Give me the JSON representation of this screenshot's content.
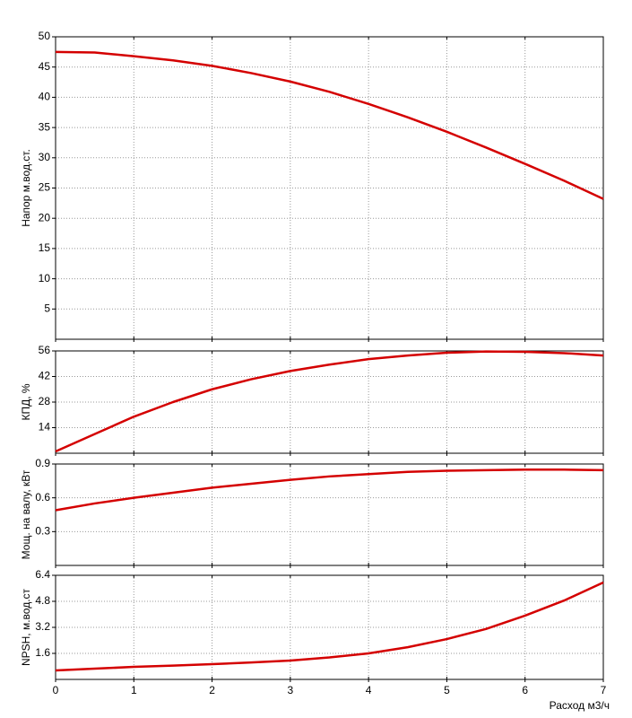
{
  "chart_data": [
    {
      "type": "line",
      "y_label": "Напор м.вод.ст.",
      "x": [
        0,
        0.5,
        1,
        1.5,
        2,
        2.5,
        3,
        3.5,
        4,
        4.5,
        5,
        5.5,
        6,
        6.5,
        7
      ],
      "series": [
        {
          "color": "#d40000",
          "values": [
            47.5,
            47.4,
            46.8,
            46.1,
            45.2,
            44.0,
            42.6,
            40.9,
            38.9,
            36.7,
            34.3,
            31.7,
            29.0,
            26.2,
            23.2
          ]
        }
      ],
      "xlim": [
        0,
        7
      ],
      "xticks": [
        0,
        1,
        2,
        3,
        4,
        5,
        6,
        7
      ],
      "ylim": [
        0,
        50
      ],
      "yticks": [
        5,
        10,
        15,
        20,
        25,
        30,
        35,
        40,
        45,
        50
      ],
      "grid": true
    },
    {
      "type": "line",
      "y_label": "КПД, %",
      "x": [
        0,
        0.5,
        1,
        1.5,
        2,
        2.5,
        3,
        3.5,
        4,
        4.5,
        5,
        5.5,
        6,
        6.5,
        7
      ],
      "series": [
        {
          "color": "#d40000",
          "values": [
            1,
            10.5,
            20,
            28,
            35,
            40.5,
            45,
            48.5,
            51.5,
            53.5,
            55,
            55.7,
            55.5,
            54.8,
            53.5
          ]
        }
      ],
      "xlim": [
        0,
        7
      ],
      "xticks": [
        0,
        1,
        2,
        3,
        4,
        5,
        6,
        7
      ],
      "ylim": [
        0,
        56
      ],
      "yticks": [
        14,
        28,
        42,
        56
      ],
      "grid": true
    },
    {
      "type": "line",
      "y_label": "Мощ. на валу, кВт",
      "x": [
        0,
        0.5,
        1,
        1.5,
        2,
        2.5,
        3,
        3.5,
        4,
        4.5,
        5,
        5.5,
        6,
        6.5,
        7
      ],
      "series": [
        {
          "color": "#d40000",
          "values": [
            0.49,
            0.55,
            0.6,
            0.645,
            0.69,
            0.725,
            0.76,
            0.79,
            0.81,
            0.83,
            0.84,
            0.845,
            0.85,
            0.85,
            0.845
          ]
        }
      ],
      "xlim": [
        0,
        7
      ],
      "xticks": [
        0,
        1,
        2,
        3,
        4,
        5,
        6,
        7
      ],
      "ylim": [
        0,
        0.9
      ],
      "yticks": [
        0.3,
        0.6,
        0.9
      ],
      "grid": true
    },
    {
      "type": "line",
      "y_label": "NPSH, м.вод.ст",
      "x_label": "Расход м3/ч",
      "x": [
        0,
        0.5,
        1,
        1.5,
        2,
        2.5,
        3,
        3.5,
        4,
        4.5,
        5,
        5.5,
        6,
        6.5,
        7
      ],
      "series": [
        {
          "color": "#d40000",
          "values": [
            0.55,
            0.66,
            0.77,
            0.85,
            0.94,
            1.04,
            1.16,
            1.35,
            1.6,
            1.98,
            2.48,
            3.1,
            3.92,
            4.85,
            5.96
          ]
        }
      ],
      "xlim": [
        0,
        7
      ],
      "xticks": [
        0,
        1,
        2,
        3,
        4,
        5,
        6,
        7
      ],
      "ylim": [
        0,
        6.4
      ],
      "yticks": [
        1.6,
        3.2,
        4.8,
        6.4
      ],
      "grid": true
    }
  ]
}
